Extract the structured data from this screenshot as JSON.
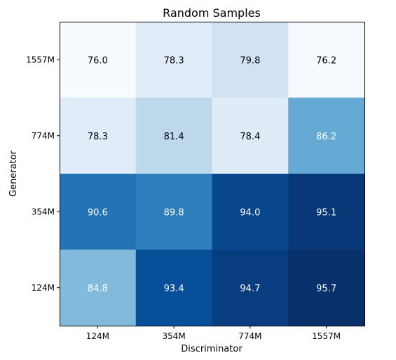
{
  "chart_data": {
    "type": "heatmap",
    "title": "Random Samples",
    "xlabel": "Discriminator",
    "ylabel": "Generator",
    "x_categories": [
      "124M",
      "354M",
      "774M",
      "1557M"
    ],
    "y_categories": [
      "1557M",
      "774M",
      "354M",
      "124M"
    ],
    "values": [
      [
        76.0,
        78.3,
        79.8,
        76.2
      ],
      [
        78.3,
        81.4,
        78.4,
        86.2
      ],
      [
        90.6,
        89.8,
        94.0,
        95.1
      ],
      [
        84.8,
        93.4,
        94.7,
        95.7
      ]
    ],
    "value_labels": [
      [
        "76.0",
        "78.3",
        "79.8",
        "76.2"
      ],
      [
        "78.3",
        "81.4",
        "78.4",
        "86.2"
      ],
      [
        "90.6",
        "89.8",
        "94.0",
        "95.1"
      ],
      [
        "84.8",
        "93.4",
        "94.7",
        "95.7"
      ]
    ],
    "colormap": "Blues",
    "color_range": [
      76.0,
      95.7
    ],
    "colorbar": false,
    "grid": false
  }
}
